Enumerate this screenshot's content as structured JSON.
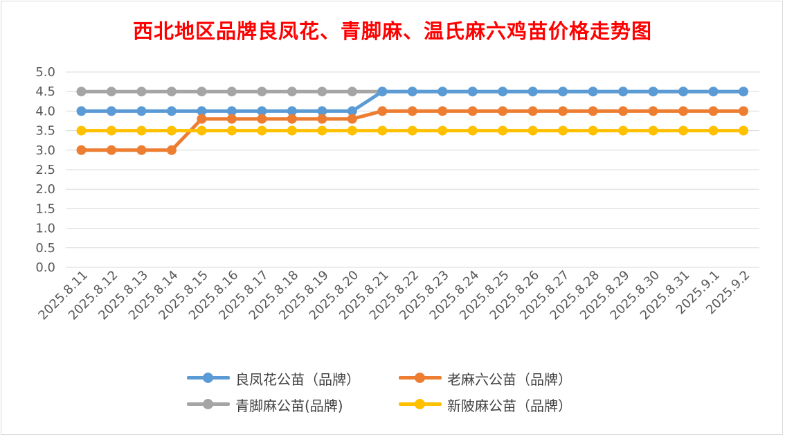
{
  "chart_data": {
    "type": "line",
    "title": "西北地区品牌良凤花、青脚麻、温氏麻六鸡苗价格走势图",
    "xlabel": "",
    "ylabel": "",
    "ylim": [
      0,
      5
    ],
    "yticks": [
      "0.0",
      "0.5",
      "1.0",
      "1.5",
      "2.0",
      "2.5",
      "3.0",
      "3.5",
      "4.0",
      "4.5",
      "5.0"
    ],
    "grid": true,
    "legend_position": "bottom",
    "categories": [
      "2025.8.11",
      "2025.8.12",
      "2025.8.13",
      "2025.8.14",
      "2025.8.15",
      "2025.8.16",
      "2025.8.17",
      "2025.8.18",
      "2025.8.19",
      "2025.8.20",
      "2025.8.21",
      "2025.8.22",
      "2025.8.23",
      "2025.8.24",
      "2025.8.25",
      "2025.8.26",
      "2025.8.27",
      "2025.8.28",
      "2025.8.29",
      "2025.8.30",
      "2025.8.31",
      "2025.9.1",
      "2025.9.2"
    ],
    "series": [
      {
        "name": "良凤花公苗（品牌）",
        "color": "#5b9bd5",
        "values": [
          4.0,
          4.0,
          4.0,
          4.0,
          4.0,
          4.0,
          4.0,
          4.0,
          4.0,
          4.0,
          4.5,
          4.5,
          4.5,
          4.5,
          4.5,
          4.5,
          4.5,
          4.5,
          4.5,
          4.5,
          4.5,
          4.5,
          4.5
        ]
      },
      {
        "name": "老麻六公苗（品牌）",
        "color": "#ed7d31",
        "values": [
          3.0,
          3.0,
          3.0,
          3.0,
          3.8,
          3.8,
          3.8,
          3.8,
          3.8,
          3.8,
          4.0,
          4.0,
          4.0,
          4.0,
          4.0,
          4.0,
          4.0,
          4.0,
          4.0,
          4.0,
          4.0,
          4.0,
          4.0
        ]
      },
      {
        "name": "青脚麻公苗(品牌)",
        "color": "#a5a5a5",
        "values": [
          4.5,
          4.5,
          4.5,
          4.5,
          4.5,
          4.5,
          4.5,
          4.5,
          4.5,
          4.5,
          4.5,
          4.5,
          4.5,
          4.5,
          4.5,
          4.5,
          4.5,
          4.5,
          4.5,
          4.5,
          4.5,
          4.5,
          4.5
        ]
      },
      {
        "name": "新陂麻公苗（品牌）",
        "color": "#ffc000",
        "values": [
          3.5,
          3.5,
          3.5,
          3.5,
          3.5,
          3.5,
          3.5,
          3.5,
          3.5,
          3.5,
          3.5,
          3.5,
          3.5,
          3.5,
          3.5,
          3.5,
          3.5,
          3.5,
          3.5,
          3.5,
          3.5,
          3.5,
          3.5
        ]
      }
    ],
    "draw_order": [
      2,
      0,
      1,
      3
    ]
  }
}
